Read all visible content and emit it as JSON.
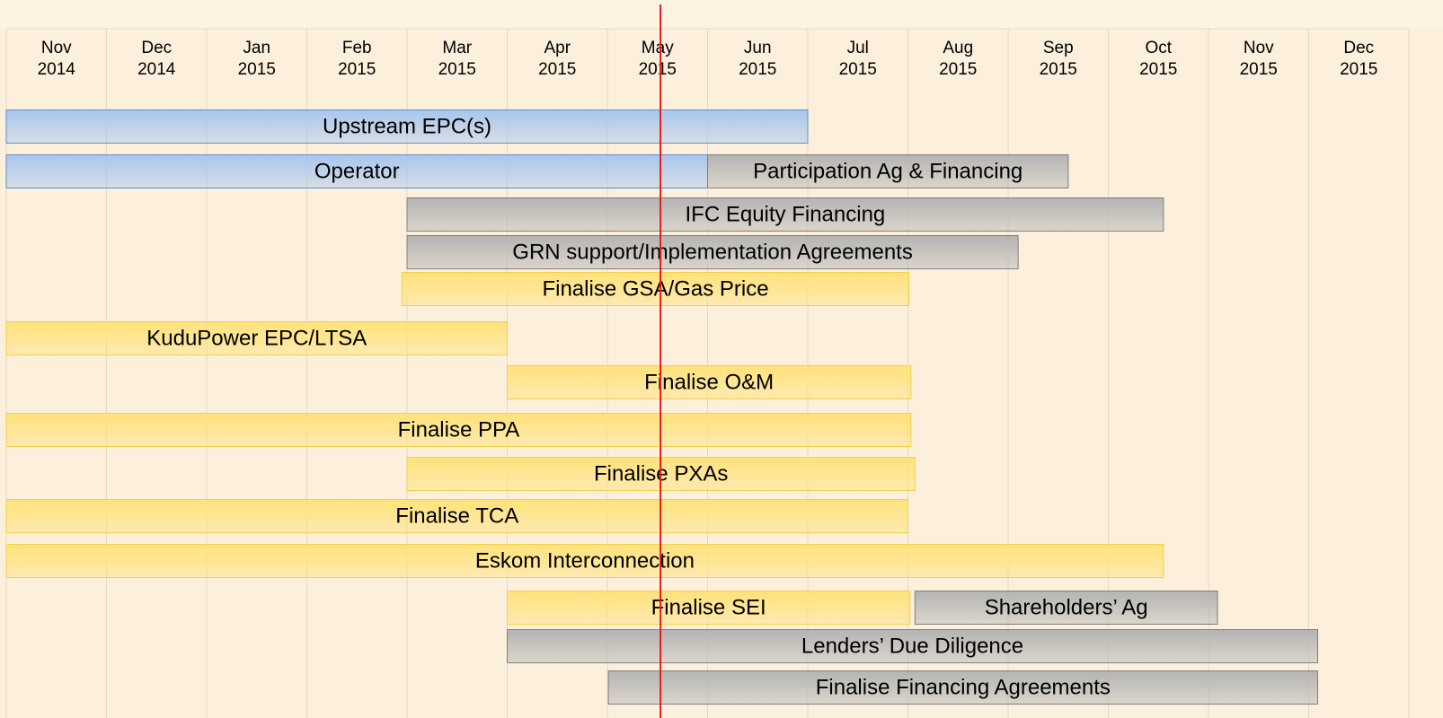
{
  "chart_data": {
    "type": "gantt",
    "categories": [
      [
        "Nov",
        "2014"
      ],
      [
        "Dec",
        "2014"
      ],
      [
        "Jan",
        "2015"
      ],
      [
        "Feb",
        "2015"
      ],
      [
        "Mar",
        "2015"
      ],
      [
        "Apr",
        "2015"
      ],
      [
        "May",
        "2015"
      ],
      [
        "Jun",
        "2015"
      ],
      [
        "Jul",
        "2015"
      ],
      [
        "Aug",
        "2015"
      ],
      [
        "Sep",
        "2015"
      ],
      [
        "Oct",
        "2015"
      ],
      [
        "Nov",
        "2015"
      ],
      [
        "Dec",
        "2015"
      ]
    ],
    "xlim": [
      0,
      14
    ],
    "marker": 6.53,
    "marker_color": "#e81c1c",
    "rows": [
      [
        {
          "name": "Upstream EPC(s)",
          "start": 0,
          "end": 8.0,
          "color": "#a9c6ee"
        }
      ],
      [
        {
          "name": "Operator",
          "start": 0,
          "end": 7.0,
          "color": "#a9c6ee"
        },
        {
          "name": "Participation Ag & Financing",
          "start": 7.0,
          "end": 10.6,
          "color": "#b4b4b4"
        }
      ],
      [
        {
          "name": "IFC Equity Financing",
          "start": 4.0,
          "end": 11.55,
          "color": "#b4b4b4"
        }
      ],
      [
        {
          "name": "GRN support/Implementation Agreements",
          "start": 4.0,
          "end": 10.1,
          "color": "#b4b4b4"
        }
      ],
      [
        {
          "name": "Finalise GSA/Gas Price",
          "start": 3.95,
          "end": 9.01,
          "color": "#ffe27a"
        }
      ],
      [
        {
          "name": "KuduPower EPC/LTSA",
          "start": 0,
          "end": 5.0,
          "color": "#ffe27a"
        }
      ],
      [
        {
          "name": "Finalise O&M",
          "start": 5.0,
          "end": 9.03,
          "color": "#ffe27a"
        }
      ],
      [
        {
          "name": "Finalise PPA",
          "start": 0,
          "end": 9.03,
          "color": "#ffe27a"
        }
      ],
      [
        {
          "name": "Finalise PXAs",
          "start": 4.0,
          "end": 9.07,
          "color": "#ffe27a"
        }
      ],
      [
        {
          "name": "Finalise TCA",
          "start": 0,
          "end": 9.0,
          "color": "#ffe27a"
        }
      ],
      [
        {
          "name": "Eskom Interconnection",
          "start": 0,
          "end": 11.55,
          "color": "#ffe27a"
        }
      ],
      [
        {
          "name": "Finalise SEI",
          "start": 5.0,
          "end": 9.02,
          "color": "#ffe27a"
        },
        {
          "name": "Shareholders’ Ag",
          "start": 9.07,
          "end": 12.09,
          "color": "#b4b4b4"
        }
      ],
      [
        {
          "name": "Lenders’ Due Diligence",
          "start": 5.0,
          "end": 13.09,
          "color": "#b4b4b4"
        }
      ],
      [
        {
          "name": "Finalise Financing Agreements",
          "start": 6.01,
          "end": 13.09,
          "color": "#b4b4b4"
        }
      ]
    ]
  }
}
